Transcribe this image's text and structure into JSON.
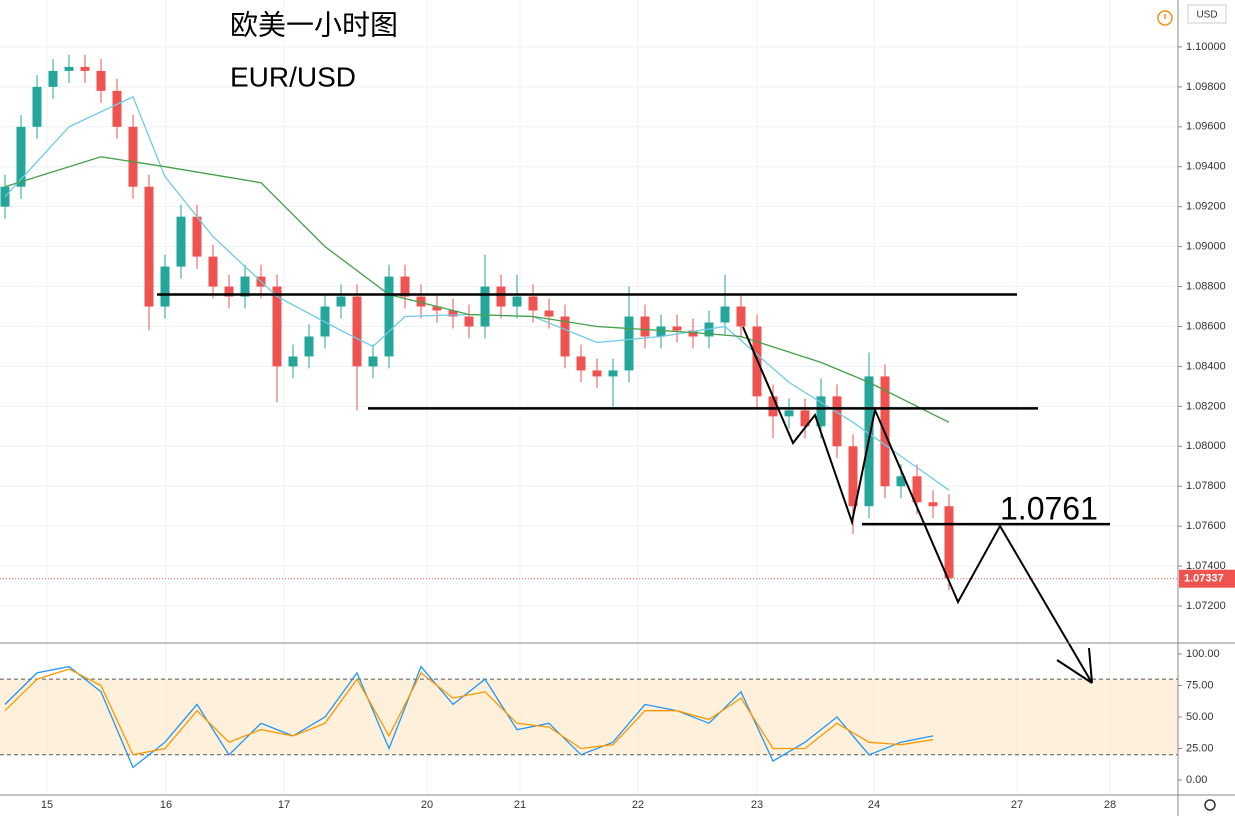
{
  "chart_data": {
    "type": "candlestick",
    "title": "欧美一小时图",
    "subtitle": "EUR/USD",
    "currency": "USD",
    "up_color": "#26a69a",
    "down_color": "#ef5350",
    "open": [
      1.092,
      1.093,
      1.096,
      1.098,
      1.0988,
      1.099,
      1.0988,
      1.0978,
      1.096,
      1.093,
      1.087,
      1.089,
      1.0915,
      1.0895,
      1.088,
      1.0875,
      1.0885,
      1.088,
      1.084,
      1.0845,
      1.0855,
      1.087,
      1.0875,
      1.084,
      1.0845,
      1.0885,
      1.0875,
      1.087,
      1.0868,
      1.0865,
      1.086,
      1.088,
      1.087,
      1.0875,
      1.0868,
      1.0865,
      1.0845,
      1.0838,
      1.0835,
      1.0838,
      1.0865,
      1.0855,
      1.086,
      1.0858,
      1.0855,
      1.0862,
      1.087,
      1.086,
      1.0825,
      1.0815,
      1.0818,
      1.081,
      1.0825,
      1.08,
      1.077,
      1.0835,
      1.078,
      1.0785,
      1.0772,
      1.077
    ],
    "high": [
      1.0936,
      1.0966,
      1.0986,
      1.0994,
      1.0996,
      1.0996,
      1.0994,
      1.0984,
      1.0966,
      1.0936,
      1.0896,
      1.0921,
      1.0921,
      1.0901,
      1.0886,
      1.0891,
      1.0891,
      1.0886,
      1.0851,
      1.0861,
      1.0876,
      1.0881,
      1.0881,
      1.0851,
      1.0891,
      1.0891,
      1.0881,
      1.0876,
      1.0874,
      1.0871,
      1.0896,
      1.0886,
      1.0886,
      1.0881,
      1.0874,
      1.0871,
      1.0851,
      1.0844,
      1.0844,
      1.088,
      1.0871,
      1.0866,
      1.0866,
      1.0864,
      1.0868,
      1.0886,
      1.0876,
      1.0866,
      1.0831,
      1.0824,
      1.0824,
      1.0834,
      1.0831,
      1.0806,
      1.0847,
      1.0841,
      1.0791,
      1.0791,
      1.0778,
      1.0776
    ],
    "low": [
      1.0914,
      1.0924,
      1.0954,
      1.0974,
      1.0982,
      1.0982,
      1.0972,
      1.0954,
      1.0924,
      1.0858,
      1.0864,
      1.0884,
      1.0889,
      1.0874,
      1.0869,
      1.0869,
      1.0874,
      1.0822,
      1.0834,
      1.0839,
      1.0849,
      1.0864,
      1.0818,
      1.0834,
      1.0839,
      1.0869,
      1.0864,
      1.0862,
      1.0859,
      1.0854,
      1.0854,
      1.0864,
      1.0864,
      1.0862,
      1.0859,
      1.0839,
      1.0832,
      1.0829,
      1.082,
      1.0832,
      1.0849,
      1.0849,
      1.0852,
      1.0849,
      1.0849,
      1.0856,
      1.0854,
      1.0819,
      1.0804,
      1.0809,
      1.0804,
      1.0804,
      1.0794,
      1.0756,
      1.0764,
      1.0774,
      1.0774,
      1.0766,
      1.0764,
      1.0728
    ],
    "close": [
      1.093,
      1.096,
      1.098,
      1.0988,
      1.099,
      1.0988,
      1.0978,
      1.096,
      1.093,
      1.087,
      1.089,
      1.0915,
      1.0895,
      1.088,
      1.0875,
      1.0885,
      1.088,
      1.084,
      1.0845,
      1.0855,
      1.087,
      1.0875,
      1.084,
      1.0845,
      1.0885,
      1.0875,
      1.087,
      1.0868,
      1.0865,
      1.086,
      1.088,
      1.087,
      1.0875,
      1.0868,
      1.0865,
      1.0845,
      1.0838,
      1.0835,
      1.0838,
      1.0865,
      1.0855,
      1.086,
      1.0858,
      1.0855,
      1.0862,
      1.087,
      1.086,
      1.0825,
      1.0815,
      1.0818,
      1.081,
      1.0825,
      1.08,
      1.077,
      1.0835,
      1.078,
      1.0785,
      1.0772,
      1.077,
      1.0734
    ],
    "moving_averages": [
      {
        "color": "#6fcbe6",
        "x": [
          0,
          4,
          8,
          10,
          13,
          17,
          21,
          23,
          25,
          29,
          33,
          37,
          41,
          45,
          49,
          53,
          59
        ],
        "values": [
          1.0925,
          1.096,
          1.0975,
          1.0935,
          1.0905,
          1.0875,
          1.0858,
          1.085,
          1.0865,
          1.0866,
          1.0865,
          1.0852,
          1.0855,
          1.086,
          1.0832,
          1.0812,
          1.0778
        ]
      },
      {
        "color": "#43a047",
        "x": [
          0,
          6,
          10,
          16,
          20,
          24,
          29,
          33,
          37,
          43,
          46,
          51,
          54,
          59
        ],
        "values": [
          1.093,
          1.0945,
          1.094,
          1.0932,
          1.09,
          1.0876,
          1.0866,
          1.0865,
          1.086,
          1.0857,
          1.0855,
          1.0842,
          1.0832,
          1.0812
        ]
      }
    ],
    "levels": [
      1.0876,
      1.0819,
      1.0761
    ],
    "last_price": 1.07337,
    "xlim": [
      -0.3125,
      73.3125
    ],
    "xticks": [
      {
        "value": 2.625,
        "label": "15"
      },
      {
        "value": 10.06,
        "label": "16"
      },
      {
        "value": 17.44,
        "label": "17"
      },
      {
        "value": 26.375,
        "label": "20"
      },
      {
        "value": 32.19,
        "label": "21"
      },
      {
        "value": 39.56,
        "label": "22"
      },
      {
        "value": 47,
        "label": "23"
      },
      {
        "value": 54.31,
        "label": "24"
      },
      {
        "value": 63.25,
        "label": "27"
      },
      {
        "value": 69.06,
        "label": "28"
      }
    ],
    "ylim": [
      1.07015,
      1.10235
    ],
    "yticks": [
      {
        "value": 1.072,
        "label": "1.07200"
      },
      {
        "value": 1.074,
        "label": "1.07400"
      },
      {
        "value": 1.076,
        "label": "1.07600"
      },
      {
        "value": 1.078,
        "label": "1.07800"
      },
      {
        "value": 1.08,
        "label": "1.08000"
      },
      {
        "value": 1.082,
        "label": "1.08200"
      },
      {
        "value": 1.084,
        "label": "1.08400"
      },
      {
        "value": 1.086,
        "label": "1.08600"
      },
      {
        "value": 1.088,
        "label": "1.08800"
      },
      {
        "value": 1.09,
        "label": "1.09000"
      },
      {
        "value": 1.092,
        "label": "1.09200"
      },
      {
        "value": 1.094,
        "label": "1.09400"
      },
      {
        "value": 1.096,
        "label": "1.09600"
      },
      {
        "value": 1.098,
        "label": "1.09800"
      },
      {
        "value": 1.1,
        "label": "1.10000"
      }
    ],
    "grid": true,
    "oscillator": {
      "ylim": [
        -11.9,
        108.7
      ],
      "yticks": [
        {
          "value": 0,
          "label": "0.00"
        },
        {
          "value": 25,
          "label": "25.00"
        },
        {
          "value": 50,
          "label": "50.00"
        },
        {
          "value": 75,
          "label": "75.00"
        },
        {
          "value": 100,
          "label": "100.00"
        }
      ],
      "band": [
        20,
        80
      ],
      "band_color": "#ffe9cc",
      "lines": [
        {
          "color": "#2196f3",
          "x": [
            0,
            2,
            4,
            6,
            8,
            10,
            12,
            14,
            16,
            18,
            20,
            22,
            24,
            26,
            28,
            30,
            32,
            34,
            36,
            38,
            40,
            42,
            44,
            46,
            48,
            50,
            52,
            54,
            56,
            58
          ],
          "values": [
            60,
            85,
            90,
            70,
            10,
            30,
            60,
            20,
            45,
            35,
            50,
            85,
            25,
            90,
            60,
            80,
            40,
            45,
            20,
            30,
            60,
            55,
            45,
            70,
            15,
            30,
            50,
            20,
            30,
            35
          ]
        },
        {
          "color": "#ff9800",
          "x": [
            0,
            2,
            4,
            6,
            8,
            10,
            12,
            14,
            16,
            18,
            20,
            22,
            24,
            26,
            28,
            30,
            32,
            34,
            36,
            38,
            40,
            42,
            44,
            46,
            48,
            50,
            52,
            54,
            56,
            58
          ],
          "values": [
            55,
            80,
            88,
            75,
            20,
            25,
            55,
            30,
            40,
            35,
            45,
            80,
            35,
            85,
            65,
            70,
            45,
            42,
            25,
            28,
            55,
            55,
            48,
            65,
            25,
            25,
            45,
            30,
            28,
            32
          ]
        }
      ]
    }
  }
}
